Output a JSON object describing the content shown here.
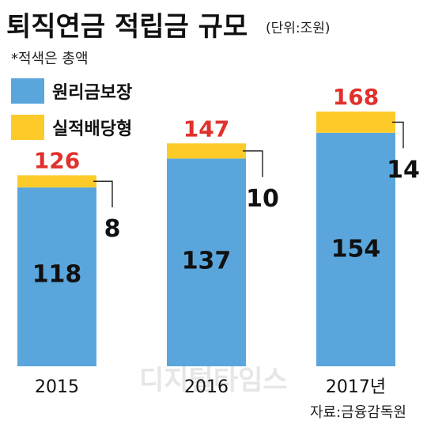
{
  "title": "퇴직연금 적립금 규모",
  "unit": "(단위:조원)",
  "note": "*적색은 총액",
  "source": "자료:금융감독원",
  "watermark": "디지털타임스",
  "colors": {
    "principal": "#5aa6dc",
    "performance": "#fccb2a",
    "total_text": "#e0312c"
  },
  "chart_data": {
    "type": "bar",
    "stacked": true,
    "categories": [
      "2015",
      "2016",
      "2017년"
    ],
    "series": [
      {
        "name": "원리금보장",
        "values": [
          118,
          137,
          154
        ]
      },
      {
        "name": "실적배당형",
        "values": [
          8,
          10,
          14
        ]
      }
    ],
    "totals": [
      126,
      147,
      168
    ],
    "title": "퇴직연금 적립금 규모",
    "ylim": [
      0,
      168
    ],
    "grid": false,
    "legend": "top-left"
  }
}
